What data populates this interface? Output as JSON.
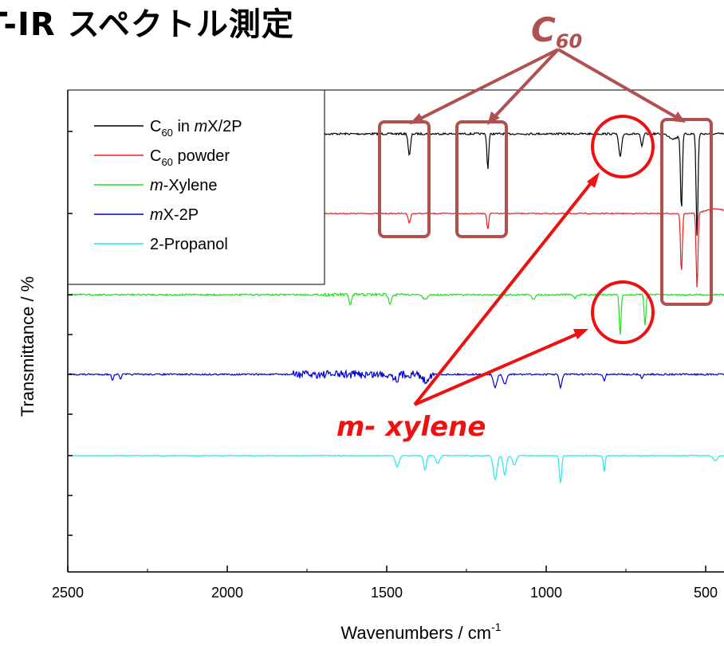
{
  "slide": {
    "title": "T-IR スペクトル測定"
  },
  "colors": {
    "black": "#000000",
    "red": "#ee1c1c",
    "green": "#22dd22",
    "blue": "#0000cc",
    "cyan": "#22e8ee",
    "box": "#b05050",
    "highlight": "#ee1111"
  },
  "annotations": {
    "c60_label": "C",
    "c60_sub": "60",
    "mxylene_label": "m- xylene"
  },
  "chart_data": {
    "type": "line",
    "title": "",
    "xlabel": "Wavenumbers / cm",
    "xlabel_sup": "-1",
    "ylabel": "Transmittance / %",
    "xlim": [
      2500,
      410
    ],
    "xticks": [
      {
        "value": 2500,
        "label": "2500"
      },
      {
        "value": 2000,
        "label": "2000"
      },
      {
        "value": 1500,
        "label": "1500"
      },
      {
        "value": 1000,
        "label": "1000"
      },
      {
        "value": 500,
        "label": "500"
      }
    ],
    "legend_position": "top-left",
    "series": [
      {
        "name_parts": [
          {
            "t": "C",
            "s": "n"
          },
          {
            "t": "60",
            "s": "sub"
          },
          {
            "t": " in ",
            "s": "n"
          },
          {
            "t": "m",
            "s": "i"
          },
          {
            "t": "X/2P",
            "s": "n"
          }
        ],
        "color": "#000000"
      },
      {
        "name_parts": [
          {
            "t": "C",
            "s": "n"
          },
          {
            "t": "60",
            "s": "sub"
          },
          {
            "t": " powder",
            "s": "n"
          }
        ],
        "color": "#ee1c1c"
      },
      {
        "name_parts": [
          {
            "t": "m",
            "s": "i"
          },
          {
            "t": "-Xylene",
            "s": "n"
          }
        ],
        "color": "#22dd22"
      },
      {
        "name_parts": [
          {
            "t": "m",
            "s": "i"
          },
          {
            "t": "X-2P",
            "s": "n"
          }
        ],
        "color": "#0000cc"
      },
      {
        "name_parts": [
          {
            "t": "2-Propanol",
            "s": "n"
          }
        ],
        "color": "#22e8ee"
      }
    ]
  }
}
